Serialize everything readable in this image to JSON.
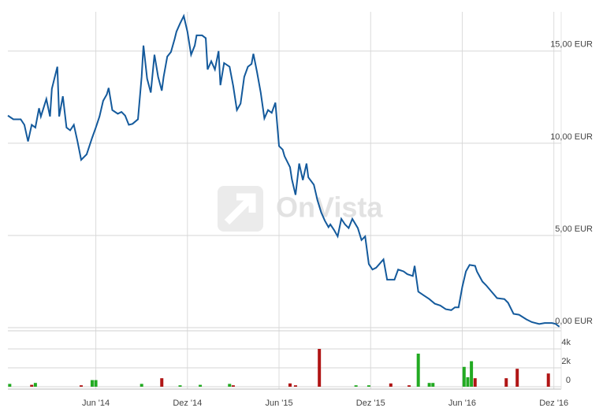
{
  "watermark": "OnVista",
  "chart_data": [
    {
      "type": "line",
      "color": "#145a9c",
      "x": [
        2013.94,
        2013.97,
        2014.01,
        2014.03,
        2014.05,
        2014.07,
        2014.09,
        2014.11,
        2014.12,
        2014.15,
        2014.17,
        2014.18,
        2014.21,
        2014.22,
        2014.24,
        2014.26,
        2014.28,
        2014.3,
        2014.32,
        2014.34,
        2014.37,
        2014.4,
        2014.42,
        2014.44,
        2014.46,
        2014.48,
        2014.49,
        2014.51,
        2014.54,
        2014.56,
        2014.58,
        2014.6,
        2014.62,
        2014.65,
        2014.67,
        2014.68,
        2014.7,
        2014.72,
        2014.74,
        2014.76,
        2014.78,
        2014.79,
        2014.81,
        2014.83,
        2014.85,
        2014.86,
        2014.88,
        2014.9,
        2014.92,
        2014.94,
        2014.96,
        2014.97,
        2015.0,
        2015.02,
        2015.03,
        2015.05,
        2015.07,
        2015.09,
        2015.1,
        2015.12,
        2015.15,
        2015.17,
        2015.19,
        2015.21,
        2015.23,
        2015.25,
        2015.27,
        2015.28,
        2015.3,
        2015.32,
        2015.34,
        2015.36,
        2015.38,
        2015.4,
        2015.42,
        2015.44,
        2015.45,
        2015.48,
        2015.49,
        2015.51,
        2015.53,
        2015.55,
        2015.57,
        2015.58,
        2015.61,
        2015.63,
        2015.65,
        2015.67,
        2015.69,
        2015.7,
        2015.72,
        2015.74,
        2015.76,
        2015.78,
        2015.8,
        2015.82,
        2015.85,
        2015.87,
        2015.89,
        2015.91,
        2015.93,
        2015.95,
        2015.99,
        2016.01,
        2016.05,
        2016.07,
        2016.1,
        2016.12,
        2016.15,
        2016.16,
        2016.18,
        2016.21,
        2016.24,
        2016.27,
        2016.3,
        2016.33,
        2016.36,
        2016.38,
        2016.4,
        2016.42,
        2016.44,
        2016.46,
        2016.49,
        2016.5,
        2016.53,
        2016.55,
        2016.58,
        2016.61,
        2016.65,
        2016.67,
        2016.7,
        2016.73,
        2016.77,
        2016.8,
        2016.84,
        2016.87,
        2016.91,
        2016.93,
        2016.95
      ],
      "values": [
        11.5,
        11.3,
        11.3,
        11.0,
        10.1,
        11.0,
        10.85,
        11.9,
        11.45,
        12.4,
        11.45,
        12.95,
        14.15,
        11.45,
        12.55,
        10.85,
        10.7,
        11.0,
        10.1,
        9.1,
        9.4,
        10.3,
        10.85,
        11.45,
        12.3,
        12.65,
        13.0,
        11.8,
        11.6,
        11.7,
        11.5,
        11.0,
        11.05,
        11.3,
        13.6,
        15.3,
        13.5,
        12.75,
        14.8,
        13.6,
        12.85,
        13.6,
        14.7,
        14.95,
        15.65,
        16.05,
        16.5,
        16.9,
        16.05,
        14.8,
        15.3,
        15.85,
        15.85,
        15.7,
        14.0,
        14.45,
        14.0,
        15.0,
        13.15,
        14.35,
        14.15,
        13.1,
        11.8,
        12.15,
        13.6,
        14.15,
        14.3,
        14.85,
        13.85,
        12.75,
        11.35,
        11.8,
        11.65,
        12.2,
        9.85,
        9.65,
        9.3,
        8.7,
        8.05,
        7.2,
        8.9,
        8.0,
        8.9,
        8.15,
        7.75,
        6.9,
        6.25,
        5.8,
        5.45,
        5.6,
        5.3,
        4.95,
        5.9,
        5.6,
        5.4,
        5.9,
        5.4,
        4.75,
        4.95,
        3.45,
        3.15,
        3.25,
        3.7,
        2.6,
        2.6,
        3.15,
        3.05,
        2.9,
        2.8,
        3.35,
        1.95,
        1.75,
        1.55,
        1.3,
        1.2,
        1.0,
        0.95,
        1.1,
        1.1,
        2.2,
        3.05,
        3.4,
        3.35,
        3.05,
        2.5,
        2.3,
        1.95,
        1.6,
        1.55,
        1.35,
        0.75,
        0.7,
        0.45,
        0.3,
        0.2,
        0.25,
        0.25,
        0.2,
        0.05
      ],
      "xlim": [
        2013.94,
        2016.96
      ],
      "xticks": [
        {
          "value": 2014.42,
          "label": "Jun '14"
        },
        {
          "value": 2014.92,
          "label": "Dez '14"
        },
        {
          "value": 2015.42,
          "label": "Jun '15"
        },
        {
          "value": 2015.92,
          "label": "Dez '15"
        },
        {
          "value": 2016.42,
          "label": "Jun '16"
        },
        {
          "value": 2016.92,
          "label": "Dez '16"
        }
      ],
      "ylim": [
        0,
        17
      ],
      "yticks": [
        {
          "value": 0,
          "label": "0,00 EUR"
        },
        {
          "value": 5,
          "label": "5,00 EUR"
        },
        {
          "value": 10,
          "label": "10,00 EUR"
        },
        {
          "value": 15,
          "label": "15,00 EUR"
        }
      ],
      "grid": true
    },
    {
      "type": "bar",
      "x": [
        2013.95,
        2014.07,
        2014.09,
        2014.34,
        2014.4,
        2014.42,
        2014.67,
        2014.78,
        2014.88,
        2014.99,
        2015.15,
        2015.17,
        2015.48,
        2015.51,
        2015.64,
        2015.84,
        2015.91,
        2016.03,
        2016.13,
        2016.18,
        2016.24,
        2016.26,
        2016.43,
        2016.45,
        2016.47,
        2016.49,
        2016.66,
        2016.72,
        2016.89
      ],
      "values": [
        300,
        200,
        400,
        150,
        700,
        700,
        300,
        900,
        150,
        200,
        300,
        150,
        350,
        150,
        4000,
        150,
        150,
        350,
        150,
        3500,
        400,
        400,
        2100,
        1000,
        2700,
        900,
        900,
        1900,
        1400
      ],
      "colors": [
        "#22aa22",
        "#b01515",
        "#22aa22",
        "#b01515",
        "#22aa22",
        "#22aa22",
        "#22aa22",
        "#b01515",
        "#22aa22",
        "#22aa22",
        "#22aa22",
        "#b01515",
        "#b01515",
        "#b01515",
        "#b01515",
        "#22aa22",
        "#22aa22",
        "#b01515",
        "#b01515",
        "#22aa22",
        "#22aa22",
        "#22aa22",
        "#22aa22",
        "#22aa22",
        "#22aa22",
        "#b01515",
        "#b01515",
        "#b01515",
        "#b01515"
      ],
      "ylim": [
        0,
        5500
      ],
      "yticks": [
        0,
        {
          "value": 2000,
          "label": "2k"
        },
        {
          "value": 4000,
          "label": "4k"
        }
      ],
      "grid": true
    }
  ]
}
